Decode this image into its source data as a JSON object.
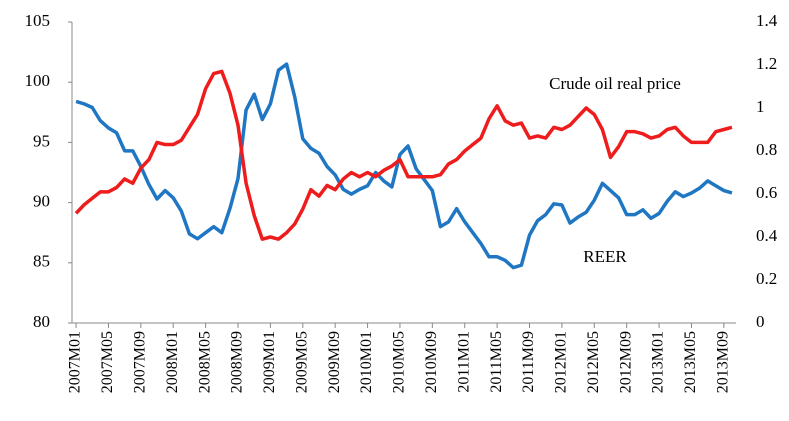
{
  "chart_data": {
    "type": "line",
    "categories": [
      "2007M01",
      null,
      null,
      null,
      "2007M05",
      null,
      null,
      null,
      "2007M09",
      null,
      null,
      null,
      "2008M01",
      null,
      null,
      null,
      "2008M05",
      null,
      null,
      null,
      "2008M09",
      null,
      null,
      null,
      "2009M01",
      null,
      null,
      null,
      "2009M05",
      null,
      null,
      null,
      "2009M09",
      null,
      null,
      null,
      "2010M01",
      null,
      null,
      null,
      "2010M05",
      null,
      null,
      null,
      "2010M09",
      null,
      null,
      null,
      "2011M01",
      null,
      null,
      null,
      "2011M05",
      null,
      null,
      null,
      "2011M09",
      null,
      null,
      null,
      "2012M01",
      null,
      null,
      null,
      "2012M05",
      null,
      null,
      null,
      "2012M09",
      null,
      null,
      null,
      "2013M01",
      null,
      null,
      null,
      "2013M05",
      null,
      null,
      null,
      "2013M09",
      null
    ],
    "series": [
      {
        "name": "REER",
        "color": "#1f77c4",
        "axis": "y",
        "values": [
          98.4,
          98.2,
          97.9,
          96.8,
          96.2,
          95.8,
          94.3,
          94.3,
          93.0,
          91.5,
          90.3,
          91.0,
          90.4,
          89.3,
          87.4,
          87.0,
          87.5,
          88.0,
          87.5,
          89.5,
          92.0,
          97.7,
          99.0,
          96.9,
          98.2,
          101.0,
          101.5,
          98.8,
          95.3,
          94.5,
          94.1,
          93.0,
          92.3,
          91.1,
          90.7,
          91.1,
          91.4,
          92.5,
          91.8,
          91.3,
          94.0,
          94.7,
          92.8,
          91.9,
          91.0,
          88.0,
          88.4,
          89.5,
          88.4,
          87.5,
          86.6,
          85.5,
          85.5,
          85.2,
          84.6,
          84.8,
          87.3,
          88.5,
          89.0,
          89.9,
          89.8,
          88.3,
          88.8,
          89.2,
          90.2,
          91.6,
          91.0,
          90.4,
          89.0,
          89.0,
          89.4,
          88.7,
          89.1,
          90.1,
          90.9,
          90.5,
          90.8,
          91.2,
          91.8,
          91.4,
          91.0,
          90.8
        ]
      },
      {
        "name": "Crude oil real price",
        "color": "#ee1c1c",
        "axis": "y2",
        "values": [
          0.51,
          0.55,
          0.58,
          0.61,
          0.61,
          0.63,
          0.67,
          0.65,
          0.72,
          0.76,
          0.84,
          0.83,
          0.83,
          0.85,
          0.91,
          0.97,
          1.09,
          1.16,
          1.17,
          1.07,
          0.92,
          0.65,
          0.5,
          0.39,
          0.4,
          0.39,
          0.42,
          0.46,
          0.53,
          0.62,
          0.59,
          0.64,
          0.62,
          0.67,
          0.7,
          0.68,
          0.7,
          0.68,
          0.71,
          0.73,
          0.76,
          0.68,
          0.68,
          0.68,
          0.68,
          0.69,
          0.74,
          0.76,
          0.8,
          0.83,
          0.86,
          0.95,
          1.01,
          0.94,
          0.92,
          0.93,
          0.86,
          0.87,
          0.86,
          0.91,
          0.9,
          0.92,
          0.96,
          1.0,
          0.97,
          0.9,
          0.77,
          0.82,
          0.89,
          0.89,
          0.88,
          0.86,
          0.87,
          0.9,
          0.91,
          0.87,
          0.84,
          0.84,
          0.84,
          0.89,
          0.9,
          0.91
        ]
      }
    ],
    "ylim": [
      80,
      105
    ],
    "yticks": [
      80,
      85,
      90,
      95,
      100,
      105
    ],
    "y2lim": [
      0,
      1.4
    ],
    "y2ticks": [
      0,
      0.2,
      0.4,
      0.6,
      0.8,
      1,
      1.2,
      1.4
    ],
    "grid": false
  }
}
